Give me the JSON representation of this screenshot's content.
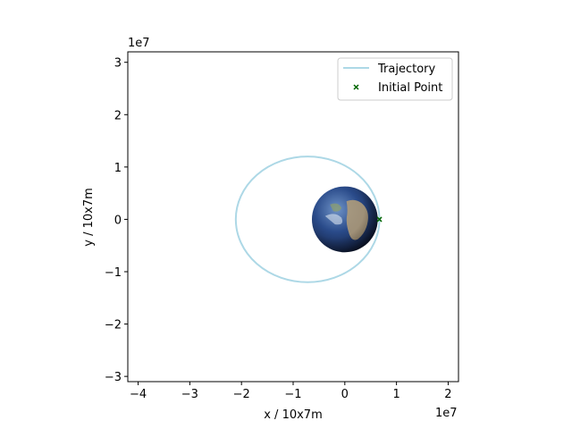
{
  "chart_data": {
    "type": "line",
    "title": "",
    "xlabel": "x / 10x7m",
    "ylabel": "y / 10x7m",
    "x_offset_text": "1e7",
    "y_offset_text": "1e7",
    "xlim": [
      -4.2,
      2.2
    ],
    "ylim": [
      -3.1,
      3.2
    ],
    "x_ticks": [
      -4,
      -3,
      -2,
      -1,
      0,
      1,
      2
    ],
    "y_ticks": [
      -3,
      -2,
      -1,
      0,
      1,
      2,
      3
    ],
    "x_tick_labels": [
      "−4",
      "−3",
      "−2",
      "−1",
      "0",
      "1",
      "2"
    ],
    "y_tick_labels": [
      "−3",
      "−2",
      "−1",
      "0",
      "1",
      "2",
      "3"
    ],
    "grid": false,
    "legend": {
      "location": "upper right"
    },
    "series": [
      {
        "name": "Trajectory",
        "kind": "line",
        "color": "#add8e6",
        "ellipse": {
          "center": [
            -0.72,
            0.0
          ],
          "semi_axis_x": 1.39,
          "semi_axis_y": 1.2
        }
      },
      {
        "name": "Initial Point",
        "kind": "scatter",
        "marker": "x",
        "color": "#006400",
        "points": [
          [
            0.67,
            0.0
          ]
        ]
      }
    ],
    "earth": {
      "center": [
        0.0,
        0.0
      ],
      "radius": 0.637
    }
  }
}
